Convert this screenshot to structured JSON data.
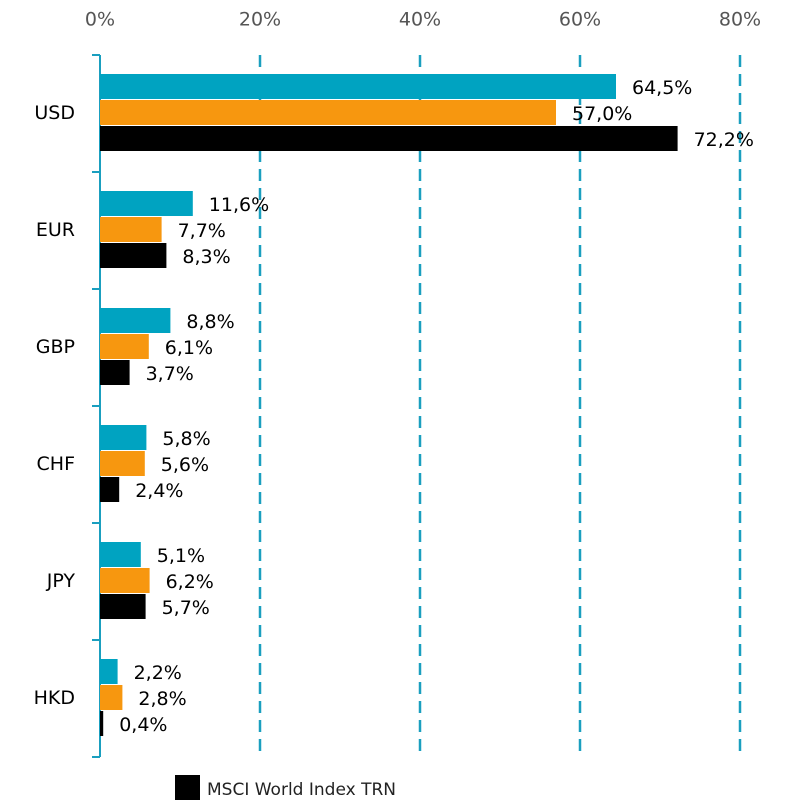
{
  "chart_data": {
    "type": "bar",
    "orientation": "horizontal",
    "categories": [
      "USD",
      "EUR",
      "GBP",
      "CHF",
      "JPY",
      "HKD"
    ],
    "series": [
      {
        "color": "#00a3c1",
        "values": [
          64.5,
          11.6,
          8.8,
          5.8,
          5.1,
          2.2
        ],
        "value_labels": [
          "64,5%",
          "11,6%",
          "8,8%",
          "5,8%",
          "5,1%",
          "2,2%"
        ]
      },
      {
        "color": "#f7970f",
        "values": [
          57.0,
          7.7,
          6.1,
          5.6,
          6.2,
          2.8
        ],
        "value_labels": [
          "57,0%",
          "7,7%",
          "6,1%",
          "5,6%",
          "6,2%",
          "2,8%"
        ]
      },
      {
        "name": "MSCI World Index TRN",
        "color": "#000000",
        "values": [
          72.2,
          8.3,
          3.7,
          2.4,
          5.7,
          0.4
        ],
        "value_labels": [
          "72,2%",
          "8,3%",
          "3,7%",
          "2,4%",
          "5,7%",
          "0,4%"
        ]
      }
    ],
    "xlim": [
      0,
      80
    ],
    "xticks": [
      {
        "value": 0,
        "label": "0%"
      },
      {
        "value": 20,
        "label": "20%"
      },
      {
        "value": 40,
        "label": "40%"
      },
      {
        "value": 60,
        "label": "60%"
      },
      {
        "value": 80,
        "label": "80%"
      }
    ],
    "grid": true,
    "axis_color": "#1a9fbf",
    "legend": "bottom"
  }
}
